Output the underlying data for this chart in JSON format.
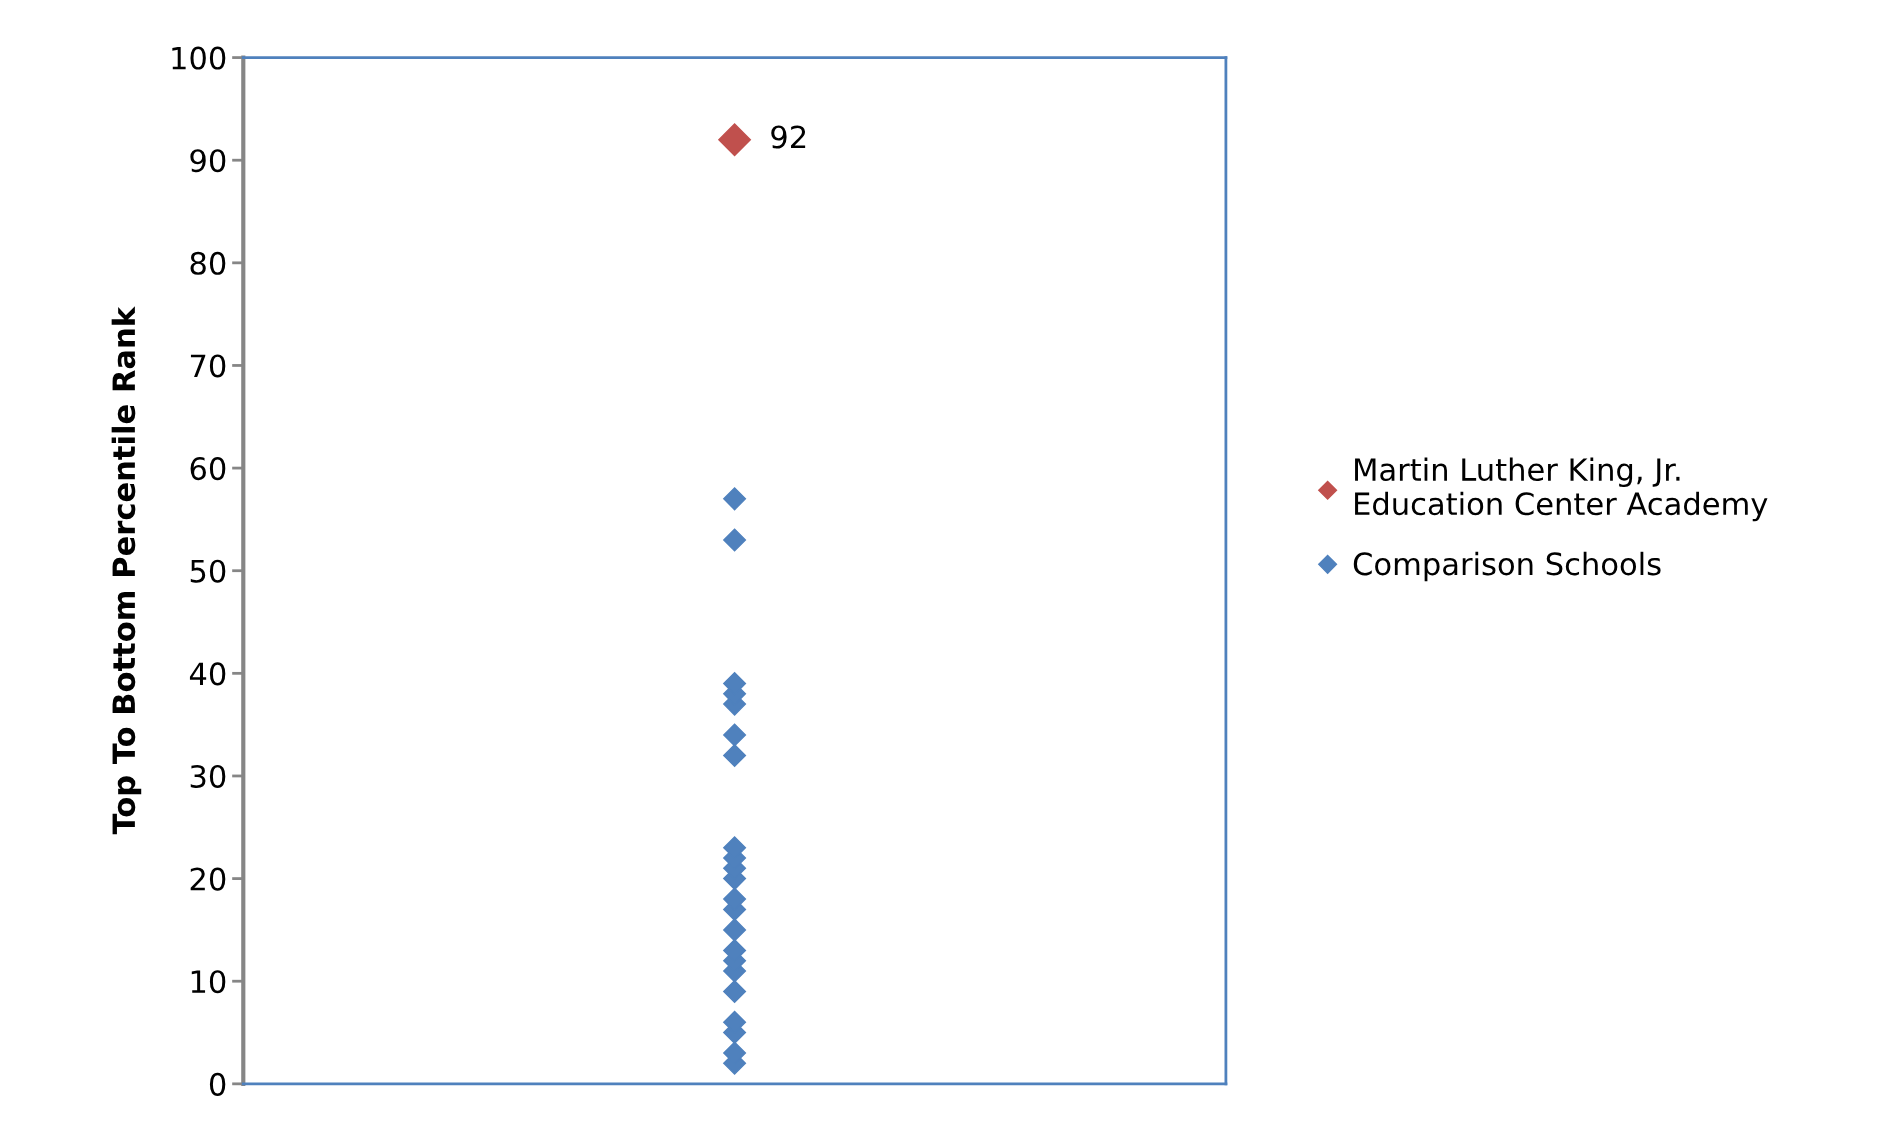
{
  "chart_data": {
    "type": "scatter",
    "ylabel": "Top To Bottom Percentile Rank",
    "categories": [
      null
    ],
    "ylim": [
      0,
      100
    ],
    "yticks": [
      0,
      10,
      20,
      30,
      40,
      50,
      60,
      70,
      80,
      90,
      100
    ],
    "grid": false,
    "legend": "right",
    "marker": "diamond",
    "series": [
      {
        "name": "Martin Luther King, Jr.\nEducation Center Academy",
        "color": "#c0504d",
        "x": [
          null
        ],
        "values": [
          92
        ],
        "value_labels": [
          "92"
        ]
      },
      {
        "name": "Comparison Schools",
        "color": "#4f81bd",
        "x": [
          null,
          null,
          null,
          null,
          null,
          null,
          null,
          null,
          null,
          null,
          null,
          null,
          null,
          null,
          null,
          null,
          null,
          null,
          null,
          null,
          null,
          null
        ],
        "values": [
          2,
          3,
          5,
          6,
          9,
          11,
          12,
          13,
          15,
          17,
          18,
          20,
          21,
          22,
          23,
          32,
          34,
          37,
          38,
          39,
          53,
          57
        ]
      }
    ]
  }
}
